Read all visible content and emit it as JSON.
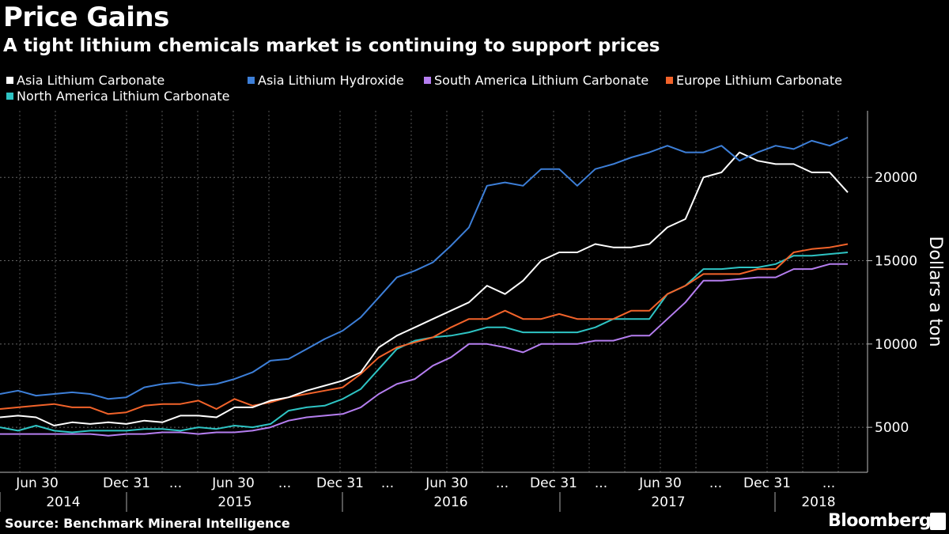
{
  "header": {
    "title": "Price Gains",
    "subtitle": "A tight lithium chemicals market is continuing to support prices"
  },
  "legend": [
    {
      "label": "Asia Lithium Carbonate",
      "color": "#ffffff"
    },
    {
      "label": "Asia Lithium Hydroxide",
      "color": "#3d7fd8"
    },
    {
      "label": "South America Lithium Carbonate",
      "color": "#b57ef0"
    },
    {
      "label": "Europe Lithium Carbonate",
      "color": "#f2632a"
    },
    {
      "label": "North America Lithium Carbonate",
      "color": "#2ec4c4"
    }
  ],
  "footer": {
    "source": "Source: Benchmark Mineral Intelligence",
    "brand": "Bloomberg"
  },
  "chart_data": {
    "type": "line",
    "ylabel": "Dollars a ton",
    "ylim": [
      2300,
      24000
    ],
    "y_ticks": [
      5000,
      10000,
      15000,
      20000
    ],
    "y_axis_position": "right",
    "grid": true,
    "x_tick_labels": [
      "Jun 30",
      "Dec 31",
      "...",
      "Jun 30",
      "...",
      "Dec 31",
      "...",
      "Jun 30",
      "...",
      "Dec 31",
      "...",
      "Jun 30",
      "...",
      "Dec 31",
      "..."
    ],
    "x_year_labels": [
      "2014",
      "2015",
      "2016",
      "2017",
      "2018"
    ],
    "series": [
      {
        "name": "Asia Lithium Hydroxide",
        "color": "#3d7fd8",
        "values": [
          7000,
          7200,
          6900,
          7000,
          7100,
          7000,
          6700,
          6800,
          7400,
          7600,
          7700,
          7500,
          7600,
          7900,
          8300,
          9000,
          9100,
          9700,
          10300,
          10800,
          11600,
          12800,
          14000,
          14400,
          14900,
          15900,
          17000,
          19500,
          19700,
          19500,
          20500,
          20500,
          19500,
          20500,
          20800,
          21200,
          21500,
          21900,
          21500,
          21500,
          21900,
          21000,
          21500,
          21900,
          21700,
          22200,
          21900,
          22400
        ]
      },
      {
        "name": "Asia Lithium Carbonate",
        "color": "#ffffff",
        "values": [
          5600,
          5700,
          5600,
          5100,
          5300,
          5200,
          5300,
          5200,
          5400,
          5300,
          5700,
          5700,
          5600,
          6200,
          6200,
          6600,
          6800,
          7200,
          7500,
          7800,
          8300,
          9800,
          10500,
          11000,
          11500,
          12000,
          12500,
          13500,
          13000,
          13800,
          15000,
          15500,
          15500,
          16000,
          15800,
          15800,
          16000,
          17000,
          17500,
          20000,
          20300,
          21500,
          21000,
          20800,
          20800,
          20300,
          20300,
          19100
        ]
      },
      {
        "name": "Europe Lithium Carbonate",
        "color": "#f2632a",
        "values": [
          6100,
          6200,
          6300,
          6400,
          6200,
          6200,
          5800,
          5900,
          6300,
          6400,
          6400,
          6600,
          6100,
          6700,
          6300,
          6500,
          6800,
          7000,
          7200,
          7400,
          8200,
          9200,
          9800,
          10100,
          10400,
          11000,
          11500,
          11500,
          12000,
          11500,
          11500,
          11800,
          11500,
          11500,
          11500,
          12000,
          12000,
          13000,
          13500,
          14200,
          14200,
          14200,
          14500,
          14500,
          15500,
          15700,
          15800,
          16000
        ]
      },
      {
        "name": "North America Lithium Carbonate",
        "color": "#2ec4c4",
        "values": [
          5000,
          4800,
          5100,
          4800,
          4700,
          4800,
          4800,
          4800,
          4900,
          4900,
          4800,
          5000,
          4900,
          5100,
          5000,
          5200,
          6000,
          6200,
          6300,
          6700,
          7300,
          8500,
          9700,
          10200,
          10400,
          10500,
          10700,
          11000,
          11000,
          10700,
          10700,
          10700,
          10700,
          11000,
          11500,
          11500,
          11500,
          13000,
          13500,
          14500,
          14500,
          14600,
          14600,
          14800,
          15300,
          15300,
          15400,
          15500
        ]
      },
      {
        "name": "South America Lithium Carbonate",
        "color": "#b57ef0",
        "values": [
          4600,
          4600,
          4600,
          4600,
          4600,
          4600,
          4500,
          4600,
          4600,
          4700,
          4700,
          4600,
          4700,
          4700,
          4800,
          5000,
          5400,
          5600,
          5700,
          5800,
          6200,
          7000,
          7600,
          7900,
          8700,
          9200,
          10000,
          10000,
          9800,
          9500,
          10000,
          10000,
          10000,
          10200,
          10200,
          10500,
          10500,
          11500,
          12500,
          13800,
          13800,
          13900,
          14000,
          14000,
          14500,
          14500,
          14800,
          14800
        ]
      }
    ]
  }
}
